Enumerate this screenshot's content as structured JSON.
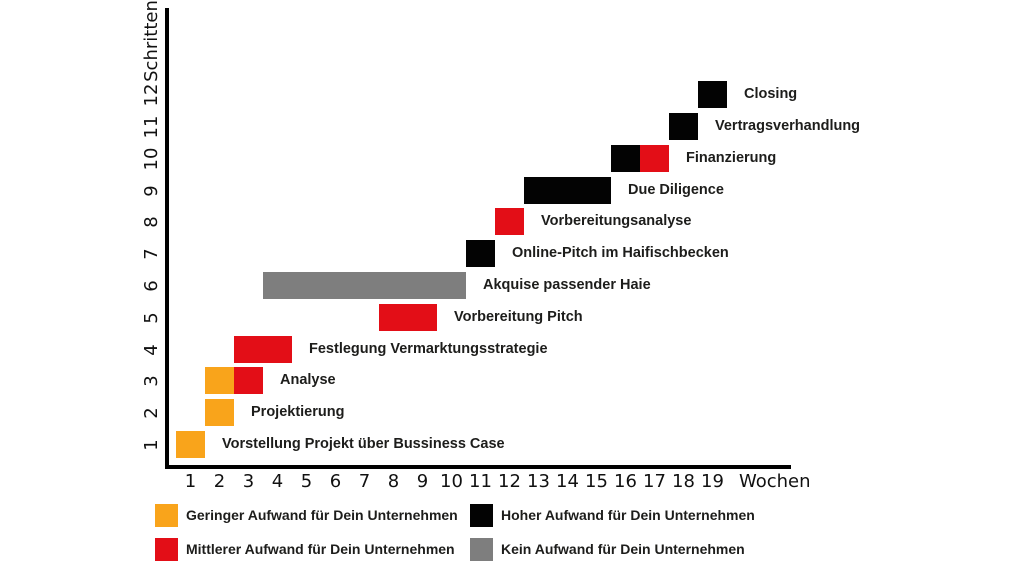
{
  "chart_data": {
    "type": "gantt",
    "x_axis": {
      "label": "Wochen",
      "min": 1,
      "max": 19,
      "ticks": [
        1,
        2,
        3,
        4,
        5,
        6,
        7,
        8,
        9,
        10,
        11,
        12,
        13,
        14,
        15,
        16,
        17,
        18,
        19
      ]
    },
    "y_axis": {
      "label": "Schritten",
      "min": 1,
      "max": 12,
      "ticks": [
        1,
        2,
        3,
        4,
        5,
        6,
        7,
        8,
        9,
        10,
        11,
        12
      ]
    },
    "effort_colors": {
      "gering": "#F9A41B",
      "mittel": "#E30E17",
      "hoch": "#030303",
      "kein": "#7E7E7E"
    },
    "tasks": [
      {
        "step": 1,
        "label": "Vorstellung Projekt über Bussiness Case",
        "segments": [
          {
            "from_week": 1,
            "to_week": 1,
            "effort": "gering"
          }
        ]
      },
      {
        "step": 2,
        "label": "Projektierung",
        "segments": [
          {
            "from_week": 2,
            "to_week": 2,
            "effort": "gering"
          }
        ]
      },
      {
        "step": 3,
        "label": "Analyse",
        "segments": [
          {
            "from_week": 2,
            "to_week": 2,
            "effort": "gering"
          },
          {
            "from_week": 3,
            "to_week": 3,
            "effort": "mittel"
          }
        ]
      },
      {
        "step": 4,
        "label": "Festlegung Vermarktungsstrategie",
        "segments": [
          {
            "from_week": 3,
            "to_week": 4,
            "effort": "mittel"
          }
        ]
      },
      {
        "step": 5,
        "label": "Vorbereitung Pitch",
        "segments": [
          {
            "from_week": 8,
            "to_week": 9,
            "effort": "mittel"
          }
        ]
      },
      {
        "step": 6,
        "label": "Akquise passender Haie",
        "segments": [
          {
            "from_week": 4,
            "to_week": 10,
            "effort": "kein"
          }
        ]
      },
      {
        "step": 7,
        "label": "Online-Pitch im Haifischbecken",
        "segments": [
          {
            "from_week": 11,
            "to_week": 11,
            "effort": "hoch"
          }
        ]
      },
      {
        "step": 8,
        "label": "Vorbereitungsanalyse",
        "segments": [
          {
            "from_week": 12,
            "to_week": 12,
            "effort": "mittel"
          }
        ]
      },
      {
        "step": 9,
        "label": "Due Diligence",
        "segments": [
          {
            "from_week": 13,
            "to_week": 15,
            "effort": "hoch"
          }
        ]
      },
      {
        "step": 10,
        "label": "Finanzierung",
        "segments": [
          {
            "from_week": 16,
            "to_week": 16,
            "effort": "hoch"
          },
          {
            "from_week": 17,
            "to_week": 17,
            "effort": "mittel"
          }
        ]
      },
      {
        "step": 11,
        "label": "Vertragsverhandlung",
        "segments": [
          {
            "from_week": 18,
            "to_week": 18,
            "effort": "hoch"
          }
        ]
      },
      {
        "step": 12,
        "label": "Closing",
        "segments": [
          {
            "from_week": 19,
            "to_week": 19,
            "effort": "hoch"
          }
        ]
      }
    ],
    "legend": [
      {
        "effort": "gering",
        "label": "Geringer Aufwand für Dein Unternehmen"
      },
      {
        "effort": "mittel",
        "label": "Mittlerer Aufwand für Dein Unternehmen"
      },
      {
        "effort": "hoch",
        "label": "Hoher Aufwand für Dein Unternehmen"
      },
      {
        "effort": "kein",
        "label": "Kein Aufwand für Dein Unternehmen"
      }
    ]
  },
  "colors": {
    "axis": "#000000",
    "text": "#1D1D1B",
    "background": "#FFFFFF"
  }
}
